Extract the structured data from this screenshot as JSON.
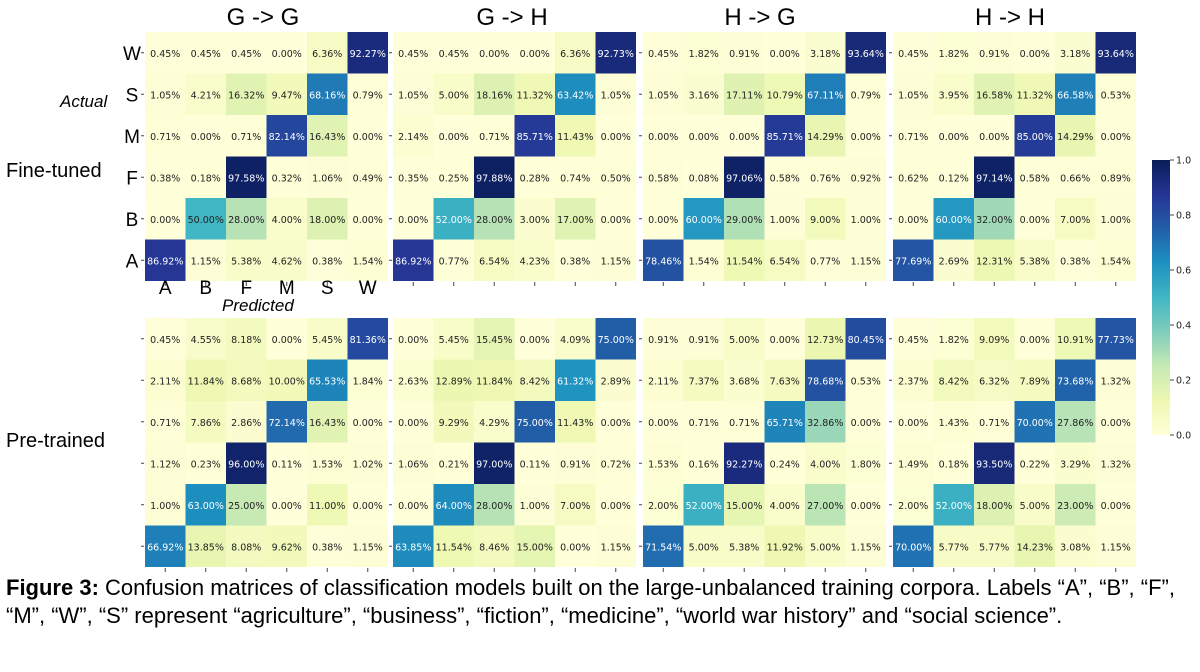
{
  "titles": [
    "G -> G",
    "G -> H",
    "H -> G",
    "H -> H"
  ],
  "row_labels": [
    "Fine-tuned",
    "Pre-trained"
  ],
  "actual_label": "Actual",
  "predicted_label": "Predicted",
  "rows_top_to_bottom": [
    "W",
    "S",
    "M",
    "F",
    "B",
    "A"
  ],
  "cols": [
    "A",
    "B",
    "F",
    "M",
    "S",
    "W"
  ],
  "caption": {
    "bold": "Figure 3:",
    "text": " Confusion matrices of classification models built on the large-unbalanced training corpora. Labels “A”, “B”, “F”, “M”, “W”, “S” represent “agriculture”, “business”, “fiction”, “medicine”, “world war history” and “social science”."
  },
  "colors": {
    "scale": [
      "#ffffd9",
      "#edf8b1",
      "#c7e9b4",
      "#7fcdbb",
      "#41b6c4",
      "#1d91c0",
      "#225ea8",
      "#253494",
      "#081d58"
    ]
  },
  "chart_data": [
    {
      "type": "heatmap",
      "title": "G -> G",
      "group": "Fine-tuned",
      "rows": [
        "W",
        "S",
        "M",
        "F",
        "B",
        "A"
      ],
      "cols": [
        "A",
        "B",
        "F",
        "M",
        "S",
        "W"
      ],
      "values": [
        [
          "0.45%",
          "0.45%",
          "0.45%",
          "0.00%",
          "6.36%",
          "92.27%"
        ],
        [
          "1.05%",
          "4.21%",
          "16.32%",
          "9.47%",
          "68.16%",
          "0.79%"
        ],
        [
          "0.71%",
          "0.00%",
          "0.71%",
          "82.14%",
          "16.43%",
          "0.00%"
        ],
        [
          "0.38%",
          "0.18%",
          "97.58%",
          "0.32%",
          "1.06%",
          "0.49%"
        ],
        [
          "0.00%",
          "50.00%",
          "28.00%",
          "4.00%",
          "18.00%",
          "0.00%"
        ],
        [
          "86.92%",
          "1.15%",
          "5.38%",
          "4.62%",
          "0.38%",
          "1.54%"
        ]
      ]
    },
    {
      "type": "heatmap",
      "title": "G -> H",
      "group": "Fine-tuned",
      "rows": [
        "W",
        "S",
        "M",
        "F",
        "B",
        "A"
      ],
      "cols": [
        "A",
        "B",
        "F",
        "M",
        "S",
        "W"
      ],
      "values": [
        [
          "0.45%",
          "0.45%",
          "0.00%",
          "0.00%",
          "6.36%",
          "92.73%"
        ],
        [
          "1.05%",
          "5.00%",
          "18.16%",
          "11.32%",
          "63.42%",
          "1.05%"
        ],
        [
          "2.14%",
          "0.00%",
          "0.71%",
          "85.71%",
          "11.43%",
          "0.00%"
        ],
        [
          "0.35%",
          "0.25%",
          "97.88%",
          "0.28%",
          "0.74%",
          "0.50%"
        ],
        [
          "0.00%",
          "52.00%",
          "28.00%",
          "3.00%",
          "17.00%",
          "0.00%"
        ],
        [
          "86.92%",
          "0.77%",
          "6.54%",
          "4.23%",
          "0.38%",
          "1.15%"
        ]
      ]
    },
    {
      "type": "heatmap",
      "title": "H -> G",
      "group": "Fine-tuned",
      "rows": [
        "W",
        "S",
        "M",
        "F",
        "B",
        "A"
      ],
      "cols": [
        "A",
        "B",
        "F",
        "M",
        "S",
        "W"
      ],
      "values": [
        [
          "0.45%",
          "1.82%",
          "0.91%",
          "0.00%",
          "3.18%",
          "93.64%"
        ],
        [
          "1.05%",
          "3.16%",
          "17.11%",
          "10.79%",
          "67.11%",
          "0.79%"
        ],
        [
          "0.00%",
          "0.00%",
          "0.00%",
          "85.71%",
          "14.29%",
          "0.00%"
        ],
        [
          "0.58%",
          "0.08%",
          "97.06%",
          "0.58%",
          "0.76%",
          "0.92%"
        ],
        [
          "0.00%",
          "60.00%",
          "29.00%",
          "1.00%",
          "9.00%",
          "1.00%"
        ],
        [
          "78.46%",
          "1.54%",
          "11.54%",
          "6.54%",
          "0.77%",
          "1.15%"
        ]
      ]
    },
    {
      "type": "heatmap",
      "title": "H -> H",
      "group": "Fine-tuned",
      "rows": [
        "W",
        "S",
        "M",
        "F",
        "B",
        "A"
      ],
      "cols": [
        "A",
        "B",
        "F",
        "M",
        "S",
        "W"
      ],
      "values": [
        [
          "0.45%",
          "1.82%",
          "0.91%",
          "0.00%",
          "3.18%",
          "93.64%"
        ],
        [
          "1.05%",
          "3.95%",
          "16.58%",
          "11.32%",
          "66.58%",
          "0.53%"
        ],
        [
          "0.71%",
          "0.00%",
          "0.00%",
          "85.00%",
          "14.29%",
          "0.00%"
        ],
        [
          "0.62%",
          "0.12%",
          "97.14%",
          "0.58%",
          "0.66%",
          "0.89%"
        ],
        [
          "0.00%",
          "60.00%",
          "32.00%",
          "0.00%",
          "7.00%",
          "1.00%"
        ],
        [
          "77.69%",
          "2.69%",
          "12.31%",
          "5.38%",
          "0.38%",
          "1.54%"
        ]
      ]
    },
    {
      "type": "heatmap",
      "title": "G -> G",
      "group": "Pre-trained",
      "rows": [
        "W",
        "S",
        "M",
        "F",
        "B",
        "A"
      ],
      "cols": [
        "A",
        "B",
        "F",
        "M",
        "S",
        "W"
      ],
      "values": [
        [
          "0.45%",
          "4.55%",
          "8.18%",
          "0.00%",
          "5.45%",
          "81.36%"
        ],
        [
          "2.11%",
          "11.84%",
          "8.68%",
          "10.00%",
          "65.53%",
          "1.84%"
        ],
        [
          "0.71%",
          "7.86%",
          "2.86%",
          "72.14%",
          "16.43%",
          "0.00%"
        ],
        [
          "1.12%",
          "0.23%",
          "96.00%",
          "0.11%",
          "1.53%",
          "1.02%"
        ],
        [
          "1.00%",
          "63.00%",
          "25.00%",
          "0.00%",
          "11.00%",
          "0.00%"
        ],
        [
          "66.92%",
          "13.85%",
          "8.08%",
          "9.62%",
          "0.38%",
          "1.15%"
        ]
      ]
    },
    {
      "type": "heatmap",
      "title": "G -> H",
      "group": "Pre-trained",
      "rows": [
        "W",
        "S",
        "M",
        "F",
        "B",
        "A"
      ],
      "cols": [
        "A",
        "B",
        "F",
        "M",
        "S",
        "W"
      ],
      "values": [
        [
          "0.00%",
          "5.45%",
          "15.45%",
          "0.00%",
          "4.09%",
          "75.00%"
        ],
        [
          "2.63%",
          "12.89%",
          "11.84%",
          "8.42%",
          "61.32%",
          "2.89%"
        ],
        [
          "0.00%",
          "9.29%",
          "4.29%",
          "75.00%",
          "11.43%",
          "0.00%"
        ],
        [
          "1.06%",
          "0.21%",
          "97.00%",
          "0.11%",
          "0.91%",
          "0.72%"
        ],
        [
          "0.00%",
          "64.00%",
          "28.00%",
          "1.00%",
          "7.00%",
          "0.00%"
        ],
        [
          "63.85%",
          "11.54%",
          "8.46%",
          "15.00%",
          "0.00%",
          "1.15%"
        ]
      ]
    },
    {
      "type": "heatmap",
      "title": "H -> G",
      "group": "Pre-trained",
      "rows": [
        "W",
        "S",
        "M",
        "F",
        "B",
        "A"
      ],
      "cols": [
        "A",
        "B",
        "F",
        "M",
        "S",
        "W"
      ],
      "values": [
        [
          "0.91%",
          "0.91%",
          "5.00%",
          "0.00%",
          "12.73%",
          "80.45%"
        ],
        [
          "2.11%",
          "7.37%",
          "3.68%",
          "7.63%",
          "78.68%",
          "0.53%"
        ],
        [
          "0.00%",
          "0.71%",
          "0.71%",
          "65.71%",
          "32.86%",
          "0.00%"
        ],
        [
          "1.53%",
          "0.16%",
          "92.27%",
          "0.24%",
          "4.00%",
          "1.80%"
        ],
        [
          "2.00%",
          "52.00%",
          "15.00%",
          "4.00%",
          "27.00%",
          "0.00%"
        ],
        [
          "71.54%",
          "5.00%",
          "5.38%",
          "11.92%",
          "5.00%",
          "1.15%"
        ]
      ]
    },
    {
      "type": "heatmap",
      "title": "H -> H",
      "group": "Pre-trained",
      "rows": [
        "W",
        "S",
        "M",
        "F",
        "B",
        "A"
      ],
      "cols": [
        "A",
        "B",
        "F",
        "M",
        "S",
        "W"
      ],
      "values": [
        [
          "0.45%",
          "1.82%",
          "9.09%",
          "0.00%",
          "10.91%",
          "77.73%"
        ],
        [
          "2.37%",
          "8.42%",
          "6.32%",
          "7.89%",
          "73.68%",
          "1.32%"
        ],
        [
          "0.00%",
          "1.43%",
          "0.71%",
          "70.00%",
          "27.86%",
          "0.00%"
        ],
        [
          "1.49%",
          "0.18%",
          "93.50%",
          "0.22%",
          "3.29%",
          "1.32%"
        ],
        [
          "2.00%",
          "52.00%",
          "18.00%",
          "5.00%",
          "23.00%",
          "0.00%"
        ],
        [
          "70.00%",
          "5.77%",
          "5.77%",
          "14.23%",
          "3.08%",
          "1.15%"
        ]
      ]
    }
  ],
  "colorbar": {
    "ticks": [
      "1.0",
      "0.8",
      "0.6",
      "0.4",
      "0.2",
      "0.0"
    ],
    "range": [
      0,
      1
    ]
  }
}
